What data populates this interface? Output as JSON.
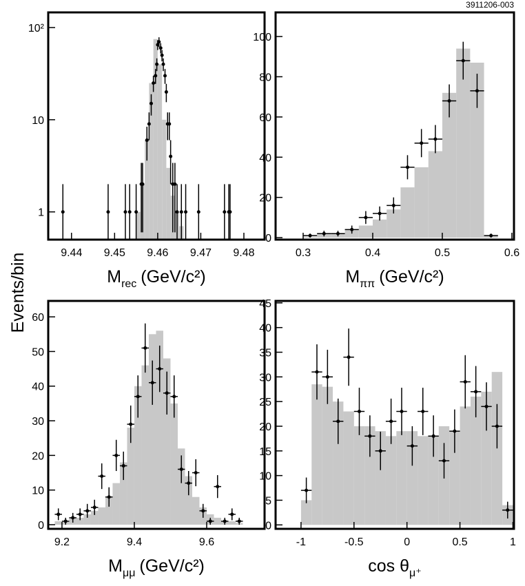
{
  "figure_id": "3911206-003",
  "ylabel": "Events/bin",
  "chart_data": [
    {
      "type": "histogram",
      "log_y": true,
      "x_error_bars": false,
      "color": "#c8c8c8",
      "xlabel": {
        "symbol": "M",
        "subscript": "rec",
        "unit": "(GeV/c²)"
      },
      "xlim": [
        9.4346,
        9.4848
      ],
      "ylim": [
        0.5,
        146
      ],
      "xticks": [
        9.44,
        9.45,
        9.46,
        9.47,
        9.48
      ],
      "yticks": [
        1,
        10,
        {
          "value": 100,
          "label": "10²"
        }
      ],
      "bins": [
        9.455,
        9.456,
        9.457,
        9.458,
        9.459,
        9.46,
        9.461,
        9.462,
        9.463,
        9.464,
        9.465,
        9.466
      ],
      "counts": [
        1,
        2,
        6,
        25,
        75,
        40,
        10,
        3,
        1.5,
        1,
        0.7
      ],
      "points": {
        "x": [
          9.438,
          9.4485,
          9.4525,
          9.4535,
          9.455,
          9.4562,
          9.4565,
          9.4575,
          9.458,
          9.4585,
          9.459,
          9.4595,
          9.4598,
          9.46,
          9.4603,
          9.4607,
          9.461,
          9.4613,
          9.4617,
          9.462,
          9.4623,
          9.4627,
          9.463,
          9.4635,
          9.464,
          9.4645,
          9.4655,
          9.4665,
          9.4695,
          9.4755,
          9.4765,
          9.4768
        ],
        "values": [
          1,
          1,
          1,
          1,
          1,
          2,
          2,
          6,
          9,
          15,
          25,
          30,
          40,
          65,
          70,
          60,
          50,
          40,
          30,
          20,
          9,
          9,
          4,
          2,
          2,
          1,
          1,
          1,
          1,
          1,
          1,
          1
        ],
        "errors": [
          1,
          1,
          1,
          1,
          1,
          1.4,
          1.4,
          2.4,
          3,
          3.9,
          5,
          5.5,
          6.3,
          8,
          8.4,
          7.7,
          7.1,
          6.3,
          5.5,
          4.5,
          3,
          3,
          2,
          1.4,
          1.4,
          1,
          1,
          1,
          1,
          1,
          1,
          1
        ]
      }
    },
    {
      "type": "histogram",
      "log_y": false,
      "x_error_bars": true,
      "color": "#c8c8c8",
      "xlabel": {
        "symbol": "M",
        "subscript": "ππ",
        "unit": "(GeV/c²)"
      },
      "xlim": [
        0.2604,
        0.603
      ],
      "ylim": [
        -1,
        112
      ],
      "xticks": [
        0.3,
        0.4,
        0.5,
        0.6
      ],
      "yticks": [
        0,
        20,
        40,
        60,
        80,
        100
      ],
      "bins": [
        0.3,
        0.32,
        0.34,
        0.36,
        0.38,
        0.4,
        0.42,
        0.44,
        0.46,
        0.48,
        0.5,
        0.52,
        0.54,
        0.56,
        0.58
      ],
      "counts": [
        0.5,
        2,
        2,
        4,
        6,
        9,
        14,
        25,
        35,
        43,
        72,
        94,
        87,
        1
      ],
      "points": {
        "x": [
          0.31,
          0.33,
          0.35,
          0.37,
          0.39,
          0.41,
          0.43,
          0.45,
          0.47,
          0.49,
          0.51,
          0.53,
          0.55,
          0.57
        ],
        "values": [
          1,
          2,
          2,
          4,
          10,
          12,
          16,
          35,
          47,
          49,
          68,
          88,
          73,
          1
        ],
        "errors": [
          1,
          1.4,
          1.4,
          2,
          3.2,
          3.5,
          4,
          6,
          7,
          7,
          8.2,
          9.4,
          8.5,
          1
        ]
      }
    },
    {
      "type": "histogram",
      "log_y": false,
      "x_error_bars": true,
      "color": "#c8c8c8",
      "xlabel": {
        "symbol": "M",
        "subscript": "μμ",
        "unit": "(GeV/c²)"
      },
      "xlim": [
        9.162,
        9.76
      ],
      "ylim": [
        -1.2,
        64.6
      ],
      "xticks": [
        9.2,
        9.4,
        9.6
      ],
      "yticks": [
        0,
        10,
        20,
        30,
        40,
        50,
        60
      ],
      "bins": [
        9.18,
        9.2,
        9.22,
        9.24,
        9.26,
        9.28,
        9.3,
        9.32,
        9.34,
        9.36,
        9.38,
        9.4,
        9.42,
        9.44,
        9.46,
        9.48,
        9.5,
        9.52,
        9.54,
        9.56,
        9.58,
        9.6,
        9.62,
        9.64,
        9.66,
        9.68,
        9.7
      ],
      "counts": [
        1,
        1,
        2,
        2,
        3,
        4,
        5,
        8,
        12,
        18,
        28,
        40,
        46,
        55,
        56,
        48,
        35,
        22,
        14,
        8,
        5,
        3,
        2,
        1,
        1,
        0.5
      ],
      "points": {
        "x": [
          9.19,
          9.21,
          9.23,
          9.25,
          9.27,
          9.29,
          9.31,
          9.33,
          9.35,
          9.37,
          9.39,
          9.41,
          9.43,
          9.45,
          9.47,
          9.49,
          9.51,
          9.53,
          9.55,
          9.57,
          9.59,
          9.61,
          9.63,
          9.65,
          9.67,
          9.69
        ],
        "values": [
          3,
          1,
          2,
          3,
          4,
          5,
          14,
          8,
          20,
          17,
          29,
          37,
          51,
          41,
          45,
          38,
          37,
          16,
          12,
          15,
          4,
          1,
          11,
          1,
          3,
          1
        ],
        "errors": [
          1.7,
          1,
          1.4,
          1.7,
          2,
          2.2,
          3.7,
          2.8,
          4.5,
          4.1,
          5.4,
          6.1,
          7.1,
          6.4,
          6.7,
          6.2,
          6.1,
          4,
          3.5,
          3.9,
          2,
          1,
          3.3,
          1,
          1.7,
          1
        ]
      }
    },
    {
      "type": "histogram",
      "log_y": false,
      "x_error_bars": true,
      "color": "#c8c8c8",
      "xlabel": {
        "symbol": "cos θ",
        "subscript": "μ⁺"
      },
      "xlim": [
        -1.24,
        1.01
      ],
      "ylim": [
        -0.8,
        45.4
      ],
      "xticks": [
        -1,
        -0.5,
        0,
        0.5,
        1
      ],
      "yticks": [
        0,
        5,
        10,
        15,
        20,
        25,
        30,
        35,
        40,
        45
      ],
      "bins": [
        -1,
        -0.9,
        -0.8,
        -0.7,
        -0.6,
        -0.5,
        -0.4,
        -0.3,
        -0.2,
        -0.1,
        0,
        0.1,
        0.2,
        0.3,
        0.4,
        0.5,
        0.6,
        0.7,
        0.8,
        0.9,
        1
      ],
      "counts": [
        5,
        28.5,
        28,
        25,
        23,
        20,
        20,
        19,
        18,
        19,
        19,
        18,
        18,
        20,
        19,
        24,
        26,
        27,
        31,
        4
      ],
      "points": {
        "x": [
          -0.95,
          -0.85,
          -0.75,
          -0.65,
          -0.55,
          -0.45,
          -0.35,
          -0.25,
          -0.15,
          -0.05,
          0.05,
          0.15,
          0.25,
          0.35,
          0.45,
          0.55,
          0.65,
          0.75,
          0.85,
          0.95
        ],
        "values": [
          7,
          31,
          30,
          21,
          34,
          23,
          18,
          15,
          21,
          23,
          16,
          23,
          18,
          13,
          19,
          29,
          27,
          24,
          20,
          3
        ],
        "errors": [
          2.6,
          5.6,
          5.5,
          4.6,
          5.8,
          4.8,
          4.2,
          3.9,
          4.6,
          4.8,
          4,
          4.8,
          4.2,
          3.6,
          4.4,
          5.4,
          5.2,
          4.9,
          4.5,
          1.7
        ]
      }
    }
  ]
}
